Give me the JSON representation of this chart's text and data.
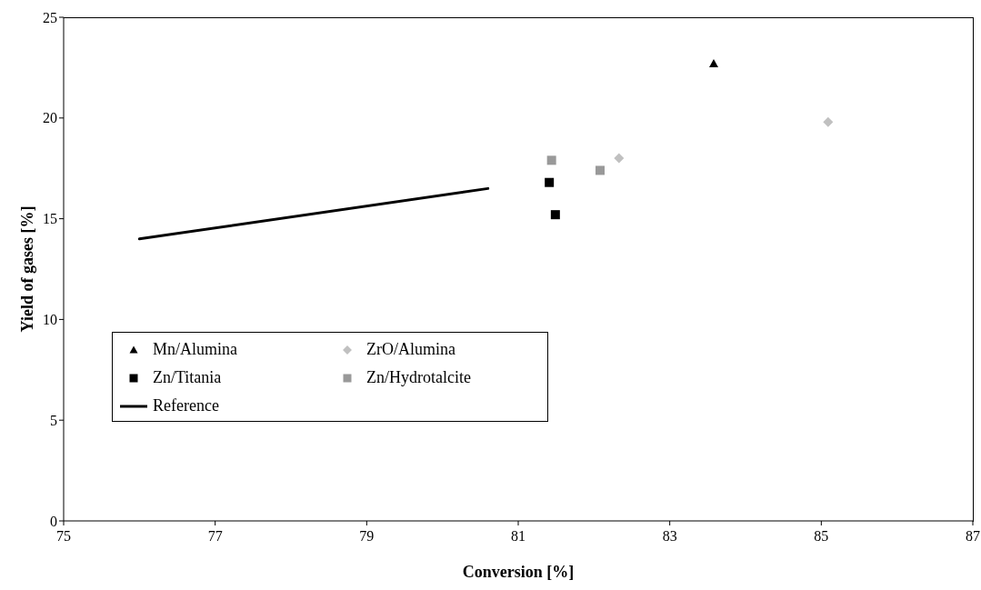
{
  "chart_data": {
    "type": "scatter",
    "xlabel": "Conversion [%]",
    "ylabel": "Yield of gases [%]",
    "xlim": [
      75,
      87
    ],
    "xticks": [
      75,
      77,
      79,
      81,
      83,
      85,
      87
    ],
    "ylim": [
      0,
      25
    ],
    "yticks": [
      0,
      5,
      10,
      15,
      20,
      25
    ],
    "grid": false,
    "legend": "bottom left",
    "series": [
      {
        "name": "Mn/Alumina",
        "color": "#000000",
        "marker": "triangle",
        "x": [
          83.58
        ],
        "values": [
          22.7
        ]
      },
      {
        "name": "ZrO/Alumina",
        "color": "#c0c0c0",
        "marker": "diamond",
        "x": [
          82.33,
          85.09
        ],
        "values": [
          18.0,
          19.8
        ]
      },
      {
        "name": "Zn/Titania",
        "color": "#000000",
        "marker": "square",
        "x": [
          81.41,
          81.49
        ],
        "values": [
          16.8,
          15.2
        ]
      },
      {
        "name": "Zn/Hydrotalcite",
        "color": "#999999",
        "marker": "square",
        "x": [
          81.44,
          82.08
        ],
        "values": [
          17.9,
          17.4
        ]
      },
      {
        "name": "Reference",
        "type": "line",
        "color": "#000000",
        "marker": "none",
        "x": [
          76.0,
          80.6
        ],
        "values": [
          14.0,
          16.5
        ]
      }
    ]
  }
}
